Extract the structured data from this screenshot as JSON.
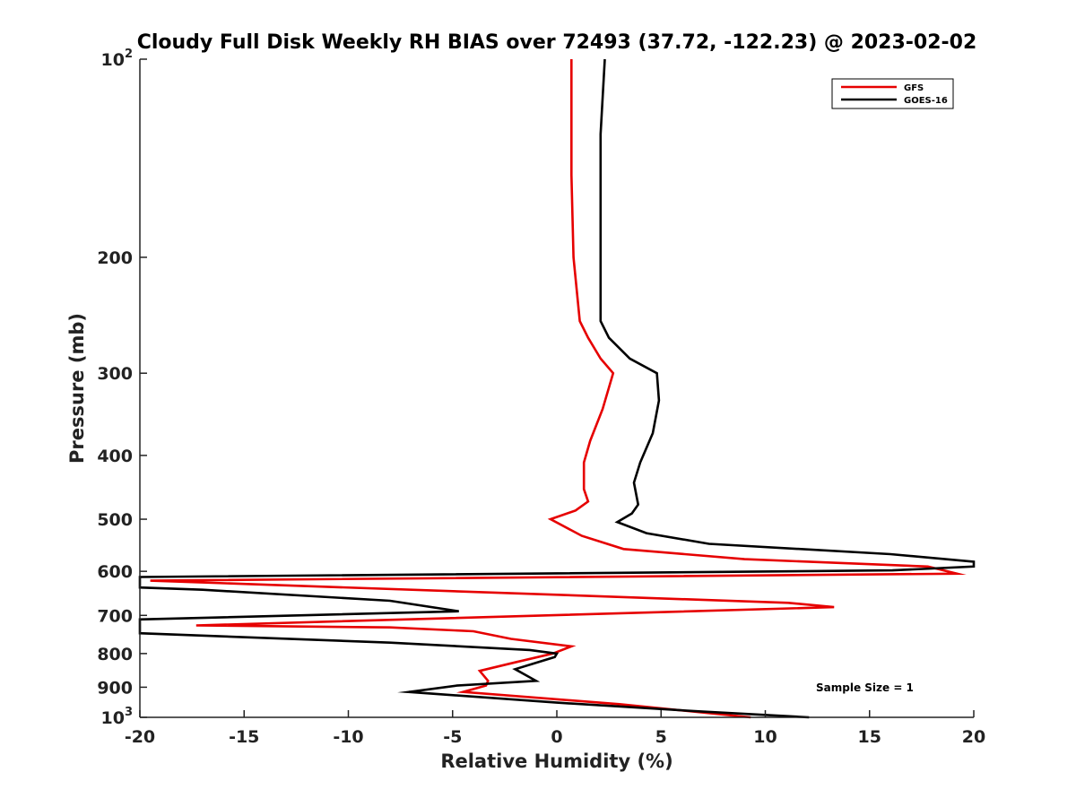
{
  "chart_data": {
    "type": "line",
    "title": "Cloudy Full Disk Weekly RH BIAS over 72493 (37.72, -122.23) @ 2023-02-02",
    "xlabel": "Relative Humidity (%)",
    "ylabel": "Pressure (mb)",
    "xlim": [
      -20,
      20
    ],
    "ylim": [
      100,
      1000
    ],
    "y_scale": "log",
    "y_reversed": true,
    "grid": false,
    "legend_position": "top-right",
    "x_ticks": [
      -20,
      -15,
      -10,
      -5,
      0,
      5,
      10,
      15,
      20
    ],
    "x_tick_labels": [
      "-20",
      "-15",
      "-10",
      "-5",
      "0",
      "5",
      "10",
      "15",
      "20"
    ],
    "y_ticks": [
      100,
      200,
      300,
      400,
      500,
      600,
      700,
      800,
      900,
      1000
    ],
    "y_tick_labels": [
      {
        "base": "10",
        "exp": "2"
      },
      {
        "base": "200",
        "exp": ""
      },
      {
        "base": "300",
        "exp": ""
      },
      {
        "base": "400",
        "exp": ""
      },
      {
        "base": "500",
        "exp": ""
      },
      {
        "base": "600",
        "exp": ""
      },
      {
        "base": "700",
        "exp": ""
      },
      {
        "base": "800",
        "exp": ""
      },
      {
        "base": "900",
        "exp": ""
      },
      {
        "base": "10",
        "exp": "3"
      }
    ],
    "annotation": "Sample Size = 1",
    "series": [
      {
        "name": "GFS",
        "color": "#e60000",
        "points": [
          {
            "x": 0.7,
            "y": 100
          },
          {
            "x": 0.7,
            "y": 150
          },
          {
            "x": 0.8,
            "y": 200
          },
          {
            "x": 1.1,
            "y": 250
          },
          {
            "x": 1.5,
            "y": 265
          },
          {
            "x": 2.1,
            "y": 285
          },
          {
            "x": 2.7,
            "y": 300
          },
          {
            "x": 2.2,
            "y": 340
          },
          {
            "x": 1.6,
            "y": 380
          },
          {
            "x": 1.3,
            "y": 410
          },
          {
            "x": 1.3,
            "y": 450
          },
          {
            "x": 1.5,
            "y": 470
          },
          {
            "x": 0.9,
            "y": 485
          },
          {
            "x": -0.3,
            "y": 500
          },
          {
            "x": 1.2,
            "y": 530
          },
          {
            "x": 3.2,
            "y": 555
          },
          {
            "x": 9.0,
            "y": 575
          },
          {
            "x": 17.8,
            "y": 590
          },
          {
            "x": 19.2,
            "y": 605
          },
          {
            "x": -19.5,
            "y": 620
          },
          {
            "x": 11.1,
            "y": 670
          },
          {
            "x": 13.3,
            "y": 680
          },
          {
            "x": -17.3,
            "y": 725
          },
          {
            "x": -8.0,
            "y": 730
          },
          {
            "x": -4.0,
            "y": 740
          },
          {
            "x": -2.2,
            "y": 760
          },
          {
            "x": 0.7,
            "y": 780
          },
          {
            "x": -0.2,
            "y": 800
          },
          {
            "x": -2.0,
            "y": 825
          },
          {
            "x": -3.7,
            "y": 850
          },
          {
            "x": -3.3,
            "y": 880
          },
          {
            "x": -3.4,
            "y": 895
          },
          {
            "x": -4.5,
            "y": 915
          },
          {
            "x": 3.0,
            "y": 955
          },
          {
            "x": 9.3,
            "y": 1000
          }
        ]
      },
      {
        "name": "GOES-16",
        "color": "#000000",
        "points": [
          {
            "x": 2.3,
            "y": 100
          },
          {
            "x": 2.1,
            "y": 130
          },
          {
            "x": 2.1,
            "y": 200
          },
          {
            "x": 2.1,
            "y": 250
          },
          {
            "x": 2.5,
            "y": 265
          },
          {
            "x": 3.5,
            "y": 285
          },
          {
            "x": 4.8,
            "y": 300
          },
          {
            "x": 4.9,
            "y": 330
          },
          {
            "x": 4.6,
            "y": 370
          },
          {
            "x": 4.0,
            "y": 410
          },
          {
            "x": 3.7,
            "y": 440
          },
          {
            "x": 3.9,
            "y": 475
          },
          {
            "x": 3.6,
            "y": 490
          },
          {
            "x": 2.9,
            "y": 505
          },
          {
            "x": 4.3,
            "y": 525
          },
          {
            "x": 7.3,
            "y": 545
          },
          {
            "x": 16.0,
            "y": 565
          },
          {
            "x": 20.0,
            "y": 580
          },
          {
            "x": 20.0,
            "y": 590
          },
          {
            "x": 16.1,
            "y": 598
          },
          {
            "x": -20.0,
            "y": 612
          },
          {
            "x": -20.0,
            "y": 635
          },
          {
            "x": -17.0,
            "y": 640
          },
          {
            "x": -8.0,
            "y": 665
          },
          {
            "x": -4.7,
            "y": 690
          },
          {
            "x": -20.0,
            "y": 710
          },
          {
            "x": -20.0,
            "y": 745
          },
          {
            "x": -8.0,
            "y": 770
          },
          {
            "x": -1.3,
            "y": 790
          },
          {
            "x": 0.0,
            "y": 800
          },
          {
            "x": -0.1,
            "y": 810
          },
          {
            "x": -1.2,
            "y": 830
          },
          {
            "x": -2.0,
            "y": 845
          },
          {
            "x": -1.0,
            "y": 880
          },
          {
            "x": -4.8,
            "y": 895
          },
          {
            "x": -7.1,
            "y": 915
          },
          {
            "x": 0.0,
            "y": 950
          },
          {
            "x": 7.0,
            "y": 980
          },
          {
            "x": 12.1,
            "y": 1000
          }
        ]
      }
    ]
  }
}
